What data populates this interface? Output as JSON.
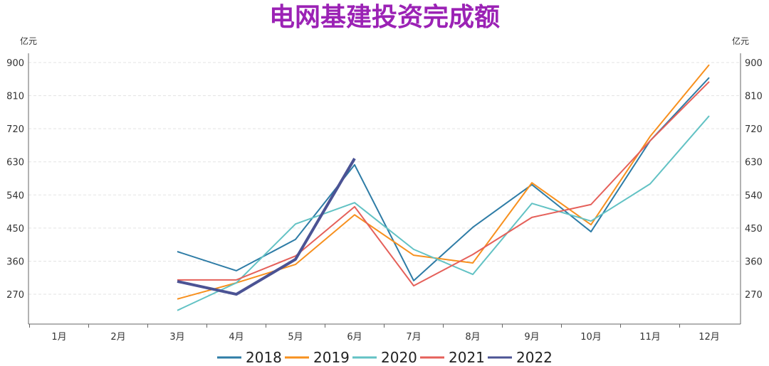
{
  "chart_data": {
    "type": "line",
    "title": "电网基建投资完成额",
    "ylabel_left": "亿元",
    "ylabel_right": "亿元",
    "categories": [
      "1月",
      "2月",
      "3月",
      "4月",
      "5月",
      "6月",
      "7月",
      "8月",
      "9月",
      "10月",
      "11月",
      "12月"
    ],
    "yticks": [
      270,
      360,
      450,
      540,
      630,
      720,
      810,
      900
    ],
    "ylim": [
      190,
      920
    ],
    "grid": true,
    "legend_position": "bottom",
    "series": [
      {
        "name": "2018",
        "color": "#2e7ca6",
        "values": [
          null,
          null,
          386,
          334,
          419,
          622,
          307,
          452,
          568,
          440,
          687,
          859
        ]
      },
      {
        "name": "2019",
        "color": "#f7901e",
        "values": [
          null,
          null,
          257,
          301,
          351,
          486,
          376,
          355,
          573,
          459,
          699,
          894
        ]
      },
      {
        "name": "2020",
        "color": "#62c2c4",
        "values": [
          null,
          null,
          226,
          301,
          461,
          519,
          392,
          324,
          517,
          469,
          570,
          755
        ]
      },
      {
        "name": "2021",
        "color": "#e5605a",
        "values": [
          null,
          null,
          309,
          309,
          374,
          508,
          293,
          378,
          479,
          514,
          687,
          848
        ]
      },
      {
        "name": "2022",
        "color": "#4b5394",
        "values": [
          null,
          null,
          305,
          270,
          365,
          639,
          null,
          null,
          null,
          null,
          null,
          null
        ]
      }
    ]
  }
}
